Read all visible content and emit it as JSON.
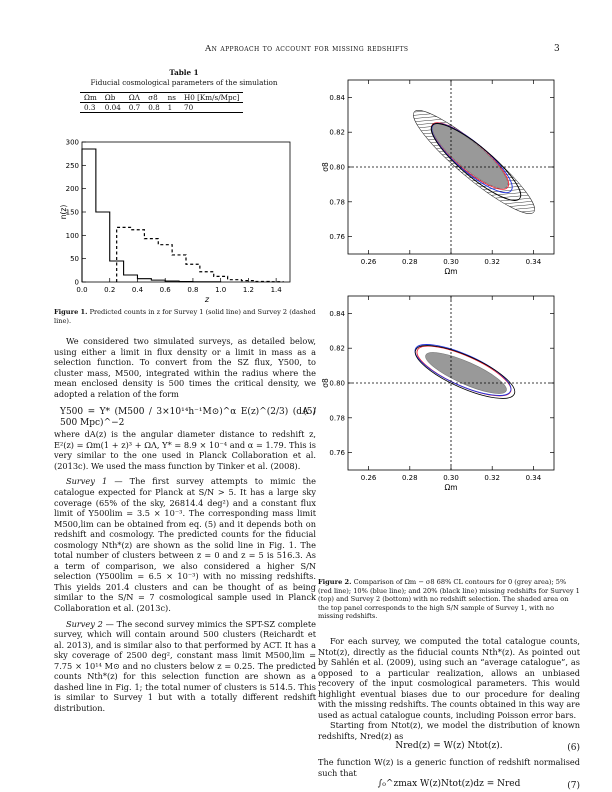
{
  "header": {
    "running_title": "An approach to account for missing redshifts",
    "page_number": "3"
  },
  "table1": {
    "label": "Table 1",
    "caption": "Fiducial cosmological parameters of the simulation",
    "headers": [
      "Ωm",
      "Ωb",
      "ΩΛ",
      "σ8",
      "ns",
      "H0 [Km/s/Mpc]"
    ],
    "row": [
      "0.3",
      "0.04",
      "0.7",
      "0.8",
      "1",
      "70"
    ]
  },
  "figure1": {
    "label": "Figure 1.",
    "caption": "Predicted counts in z for Survey 1 (solid line) and Survey 2 (dashed line).",
    "chart_data": {
      "type": "line",
      "xlabel": "z",
      "ylabel": "n(z)",
      "xlim": [
        0,
        1.5
      ],
      "ylim": [
        0,
        300
      ],
      "xticks": [
        "0.0",
        "0.2",
        "0.4",
        "0.6",
        "0.8",
        "1.0",
        "1.2",
        "1.4"
      ],
      "yticks": [
        "0",
        "50",
        "100",
        "150",
        "200",
        "250",
        "300"
      ],
      "series": [
        {
          "style": "solid",
          "x": [
            0.05,
            0.15,
            0.25,
            0.35,
            0.45,
            0.55,
            0.65,
            0.75,
            0.85,
            0.95
          ],
          "values": [
            285,
            150,
            45,
            15,
            7,
            4,
            2,
            1,
            0.5,
            0.3
          ]
        },
        {
          "style": "dashed",
          "x": [
            0.3,
            0.4,
            0.5,
            0.6,
            0.7,
            0.8,
            0.9,
            1.0,
            1.1,
            1.2,
            1.3,
            1.4
          ],
          "values": [
            117,
            112,
            93,
            80,
            58,
            38,
            22,
            12,
            5,
            3,
            1,
            0.5
          ]
        }
      ]
    }
  },
  "figure2": {
    "label": "Figure 2.",
    "caption": "Comparison of Ωm − σ8 68% CL contours for 0 (grey area); 5% (red line); 10% (blue line); and 20% (black line) missing redshifts for Survey 1 (top) and Survey 2 (bottom) with no redshift selection. The shaded area on the top panel corresponds to the high S/N sample of Survey 1, with no missing redshifts.",
    "chart_data": [
      {
        "type": "contour",
        "panel": "top",
        "xlabel": "Ωm",
        "ylabel": "σ8",
        "xlim": [
          0.25,
          0.35
        ],
        "ylim": [
          0.75,
          0.85
        ],
        "xticks": [
          "0.26",
          "0.28",
          "0.30",
          "0.32",
          "0.34"
        ],
        "yticks": [
          "0.76",
          "0.78",
          "0.80",
          "0.82",
          "0.84"
        ],
        "fiducial": {
          "x": 0.3,
          "y": 0.8
        }
      },
      {
        "type": "contour",
        "panel": "bottom",
        "xlabel": "Ωm",
        "ylabel": "σ8",
        "xlim": [
          0.25,
          0.35
        ],
        "ylim": [
          0.75,
          0.85
        ],
        "xticks": [
          "0.26",
          "0.28",
          "0.30",
          "0.32",
          "0.34"
        ],
        "yticks": [
          "0.76",
          "0.78",
          "0.80",
          "0.82",
          "0.84"
        ],
        "fiducial": {
          "x": 0.3,
          "y": 0.8
        }
      }
    ]
  },
  "left_column": {
    "p1": "We considered two simulated surveys, as detailed below, using either a limit in flux density or a limit in mass as a selection function. To convert from the SZ flux, Y500, to cluster mass, M500, integrated within the radius where the mean enclosed density is 500 times the critical density, we adopted a relation of the form",
    "eq5_lhs": "Y500 = Y* (M500 / 3×10¹⁴h⁻¹M⊙)^α E(z)^(2/3) (dA / 500 Mpc)^−2",
    "eq5_num": "(5)",
    "p2": "where dA(z) is the angular diameter distance to redshift z, E²(z) = Ωm(1 + z)³ + ΩΛ, Y* = 8.9 × 10⁻⁴ and α = 1.79. This is very similar to the one used in Planck Collaboration et al. (2013c). We used the mass function by Tinker et al. (2008).",
    "s1_label": "Survey 1",
    "p3": "— The first survey attempts to mimic the catalogue expected for Planck at S/N > 5. It has a large sky coverage (65% of the sky, 26814.4 deg²) and a constant flux limit of Y500lim = 3.5 × 10⁻³. The corresponding mass limit M500,lim can be obtained from eq. (5) and it depends both on redshift and cosmology. The predicted counts for the fiducial cosmology Nth*(z) are shown as the solid line in Fig. 1. The total number of clusters between z = 0 and z = 5 is 516.3. As a term of comparison, we also considered a higher S/N selection (Y500lim = 6.5 × 10⁻³) with no missing redshifts. This yields 201.4 clusters and can be thought of as being similar to the S/N = 7 cosmological sample used in Planck Collaboration et al. (2013c).",
    "s2_label": "Survey 2",
    "p4": "— The second survey mimics the SPT-SZ complete survey, which will contain around 500 clusters (Reichardt et al. 2013), and is similar also to that performed by ACT. It has a sky coverage of 2500 deg², constant mass limit M500,lim = 7.75 × 10¹⁴ M⊙ and no clusters below z = 0.25. The predicted counts Nth*(z) for this selection function are shown as a dashed line in Fig. 1; the total numer of clusters is 514.5. This is similar to Survey 1 but with a totally different redshift distribution."
  },
  "right_column": {
    "p1": "For each survey, we computed the total catalogue counts, Ntot(z), directly as the fiducial counts Nth*(z). As pointed out by Sahlén et al. (2009), using such an “average catalogue”, as opposed to a particular realization, allows an unbiased recovery of the input cosmological parameters. This would highlight eventual biases due to our procedure for dealing with the missing redshifts. The counts obtained in this way are used as actual catalogue counts, including Poisson error bars.",
    "p2": "Starting from Ntot(z), we model the distribution of known redshifts, Nred(z) as",
    "eq6": "Nred(z) = W(z) Ntot(z).",
    "eq6_num": "(6)",
    "p3": "The function W(z) is a generic function of redshift normalised such that",
    "eq7": "∫₀^zmax W(z)Ntot(z)dz = Nred",
    "eq7_num": "(7)"
  }
}
